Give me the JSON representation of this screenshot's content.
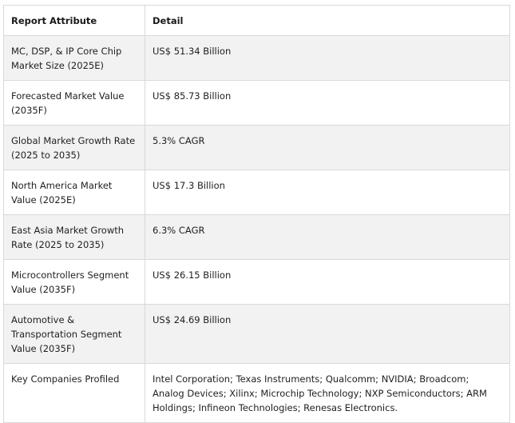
{
  "table": {
    "headers": [
      "Report Attribute",
      "Detail"
    ],
    "rows": [
      {
        "attribute": "MC, DSP, & IP Core Chip Market Size (2025E)",
        "detail": "US$ 51.34 Billion"
      },
      {
        "attribute": "Forecasted Market Value (2035F)",
        "detail": "US$ 85.73 Billion"
      },
      {
        "attribute": "Global Market Growth Rate (2025 to 2035)",
        "detail": "5.3% CAGR"
      },
      {
        "attribute": "North America Market Value (2025E)",
        "detail": "US$ 17.3 Billion"
      },
      {
        "attribute": "East Asia Market Growth Rate (2025 to 2035)",
        "detail": "6.3% CAGR"
      },
      {
        "attribute": "Microcontrollers Segment Value (2035F)",
        "detail": "US$ 26.15 Billion"
      },
      {
        "attribute": "Automotive & Transportation Segment Value (2035F)",
        "detail": "US$ 24.69 Billion"
      },
      {
        "attribute": "Key Companies Profiled",
        "detail": "Intel Corporation; Texas Instruments; Qualcomm; NVIDIA; Broadcom; Analog Devices; Xilinx; Microchip Technology; NXP Semiconductors; ARM Holdings; Infineon Technologies; Renesas Electronics."
      }
    ]
  }
}
